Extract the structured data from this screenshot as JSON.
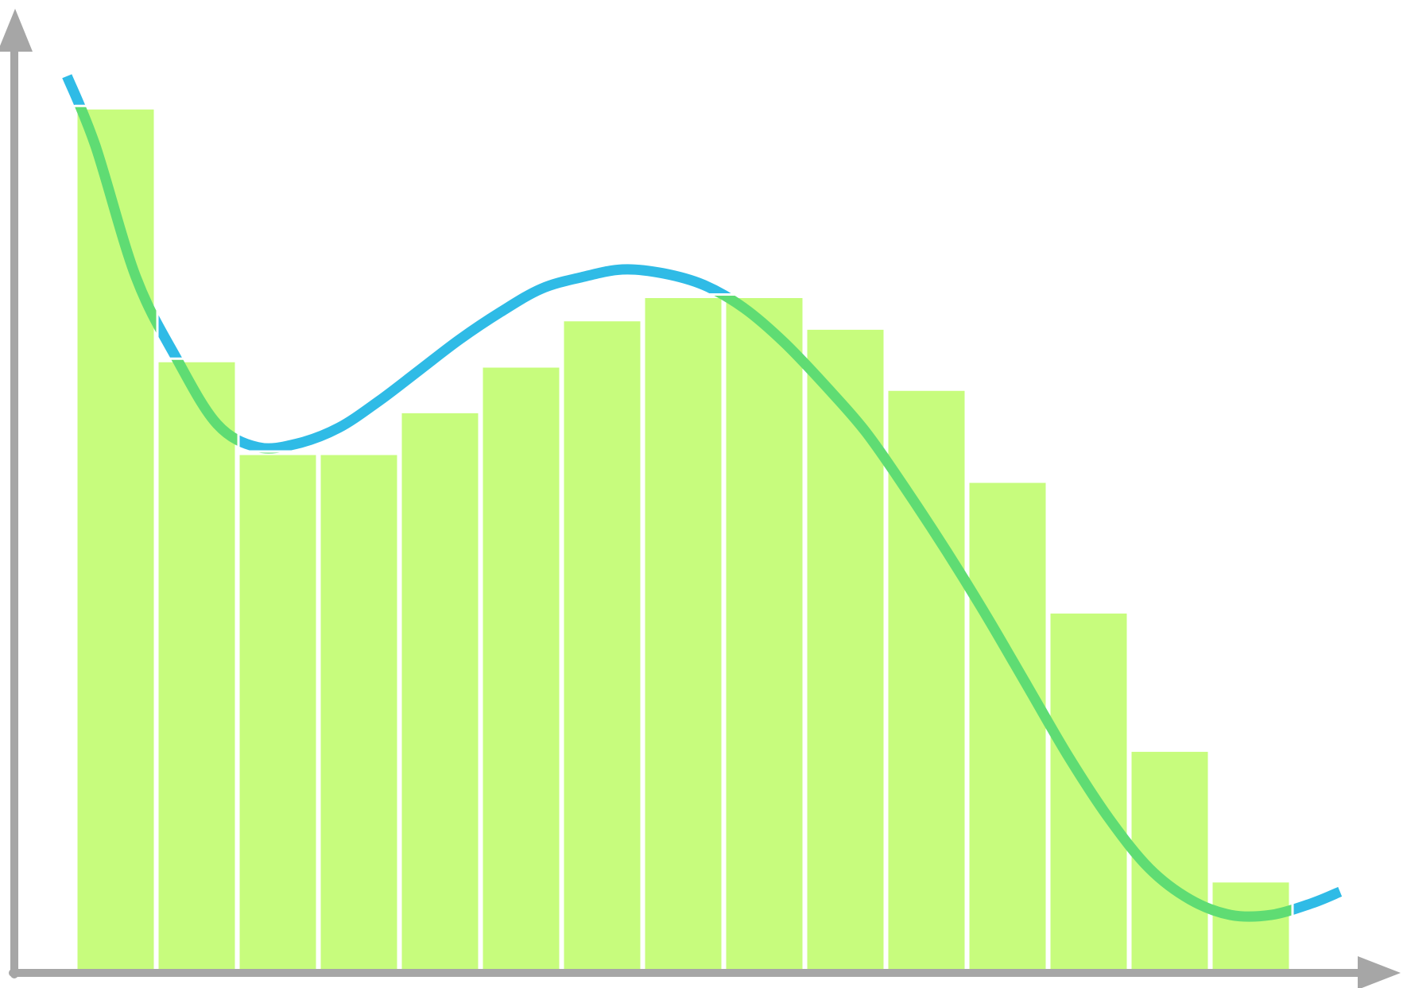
{
  "chart_data": {
    "type": "bar",
    "title": "",
    "xlabel": "",
    "ylabel": "",
    "grid": false,
    "legend": "none",
    "bar_outline": "white",
    "xlim": [
      0,
      17
    ],
    "ylim": [
      0,
      12.4
    ],
    "bars": [
      {
        "x_start": 0.75,
        "x_end": 1.75,
        "value": 11.2
      },
      {
        "x_start": 1.75,
        "x_end": 2.75,
        "value": 7.93
      },
      {
        "x_start": 2.75,
        "x_end": 3.75,
        "value": 6.73
      },
      {
        "x_start": 3.75,
        "x_end": 4.75,
        "value": 6.73
      },
      {
        "x_start": 4.75,
        "x_end": 5.75,
        "value": 7.27
      },
      {
        "x_start": 5.75,
        "x_end": 6.75,
        "value": 7.86
      },
      {
        "x_start": 6.75,
        "x_end": 7.75,
        "value": 8.46
      },
      {
        "x_start": 7.75,
        "x_end": 8.75,
        "value": 8.76
      },
      {
        "x_start": 8.75,
        "x_end": 9.75,
        "value": 8.76
      },
      {
        "x_start": 9.75,
        "x_end": 10.75,
        "value": 8.35
      },
      {
        "x_start": 10.75,
        "x_end": 11.75,
        "value": 7.56
      },
      {
        "x_start": 11.75,
        "x_end": 12.75,
        "value": 6.37
      },
      {
        "x_start": 12.75,
        "x_end": 13.75,
        "value": 4.68
      },
      {
        "x_start": 13.75,
        "x_end": 14.75,
        "value": 2.89
      },
      {
        "x_start": 14.75,
        "x_end": 15.75,
        "value": 1.2
      }
    ],
    "series": [
      {
        "type": "line",
        "x": [
          0.65,
          1.0,
          1.5,
          2.0,
          2.5,
          3.0,
          3.5,
          4.0,
          4.5,
          5.0,
          5.5,
          6.0,
          6.5,
          7.0,
          7.5,
          8.0,
          8.5,
          9.0,
          9.5,
          10.0,
          10.5,
          11.0,
          11.5,
          12.0,
          12.5,
          13.0,
          13.5,
          14.0,
          14.5,
          15.0,
          15.5,
          16.0,
          16.35
        ],
        "y": [
          11.6,
          10.7,
          9.0,
          7.95,
          7.1,
          6.8,
          6.85,
          7.05,
          7.4,
          7.8,
          8.2,
          8.55,
          8.85,
          9.0,
          9.1,
          9.05,
          8.9,
          8.6,
          8.15,
          7.6,
          7.0,
          6.25,
          5.45,
          4.6,
          3.7,
          2.8,
          2.0,
          1.35,
          0.95,
          0.75,
          0.75,
          0.9,
          1.05
        ]
      }
    ]
  },
  "style": {
    "bar_fill": "#c7fc7d",
    "bar_stroke": "#ffffff",
    "curve_color": "#2fbbe6",
    "curve_over_bar_color": "#5fdc73",
    "axis_color": "#a6a6a6"
  }
}
